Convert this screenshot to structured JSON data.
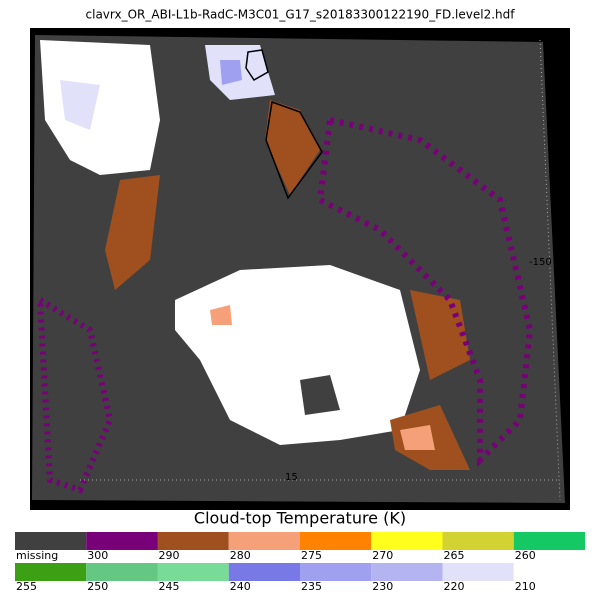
{
  "title": "clavrx_OR_ABI-L1b-RadC-M3C01_G17_s20183300122190_FD.level2.hdf",
  "map": {
    "grid_labels": [
      "-150",
      "15"
    ]
  },
  "colorbar": {
    "title": "Cloud-top Temperature (K)",
    "rows": [
      [
        {
          "color": "#404040",
          "label": "missing"
        },
        {
          "color": "#780078",
          "label": "300"
        },
        {
          "color": "#a0501e",
          "label": "290"
        },
        {
          "color": "#f5a078",
          "label": "280"
        },
        {
          "color": "#ff8200",
          "label": "275"
        },
        {
          "color": "#ffff1e",
          "label": "270"
        },
        {
          "color": "#d2d232",
          "label": "265"
        },
        {
          "color": "#14c864",
          "label": "260"
        }
      ],
      [
        {
          "color": "#3ca014",
          "label": "255"
        },
        {
          "color": "#64c882",
          "label": "250"
        },
        {
          "color": "#78dc96",
          "label": "245"
        },
        {
          "color": "#7878e6",
          "label": "240"
        },
        {
          "color": "#a0a0f0",
          "label": "235"
        },
        {
          "color": "#b4b4f0",
          "label": "230"
        },
        {
          "color": "#e1e1fa",
          "label": "220"
        },
        {
          "color": "#ffffff",
          "label": "210"
        }
      ]
    ]
  }
}
